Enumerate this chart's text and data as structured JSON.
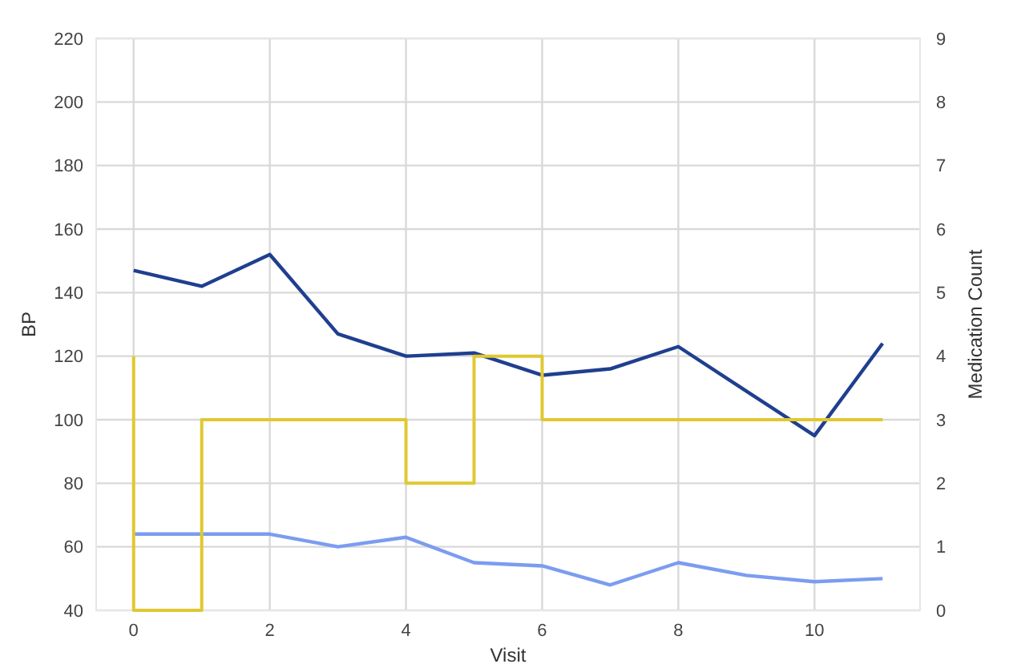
{
  "chart_data": {
    "type": "line",
    "xlabel": "Visit",
    "ylabel": "BP",
    "y2label": "Medication Count",
    "x": [
      0,
      1,
      2,
      3,
      4,
      5,
      6,
      7,
      8,
      9,
      10,
      11
    ],
    "series": [
      {
        "color": "#1f3f8f",
        "values": [
          147,
          142,
          152,
          127,
          120,
          121,
          114,
          116,
          123,
          109,
          95,
          124
        ]
      },
      {
        "color": "#7b9cf0",
        "values": [
          64,
          64,
          64,
          60,
          63,
          55,
          54,
          48,
          55,
          51,
          49,
          50
        ]
      },
      {
        "type": "step",
        "axis": "y2",
        "color": "#e0c830",
        "values": [
          4,
          0,
          3,
          3,
          3,
          2,
          4,
          3,
          3,
          3,
          3,
          3
        ]
      }
    ],
    "xlim": [
      -0.55,
      11.55
    ],
    "xticks": [
      0,
      2,
      4,
      6,
      8,
      10
    ],
    "ylim": [
      40,
      220
    ],
    "yticks": [
      40,
      60,
      80,
      100,
      120,
      140,
      160,
      180,
      200,
      220
    ],
    "y2lim": [
      0,
      9
    ],
    "y2ticks": [
      0,
      1,
      2,
      3,
      4,
      5,
      6,
      7,
      8,
      9
    ],
    "grid": true
  }
}
